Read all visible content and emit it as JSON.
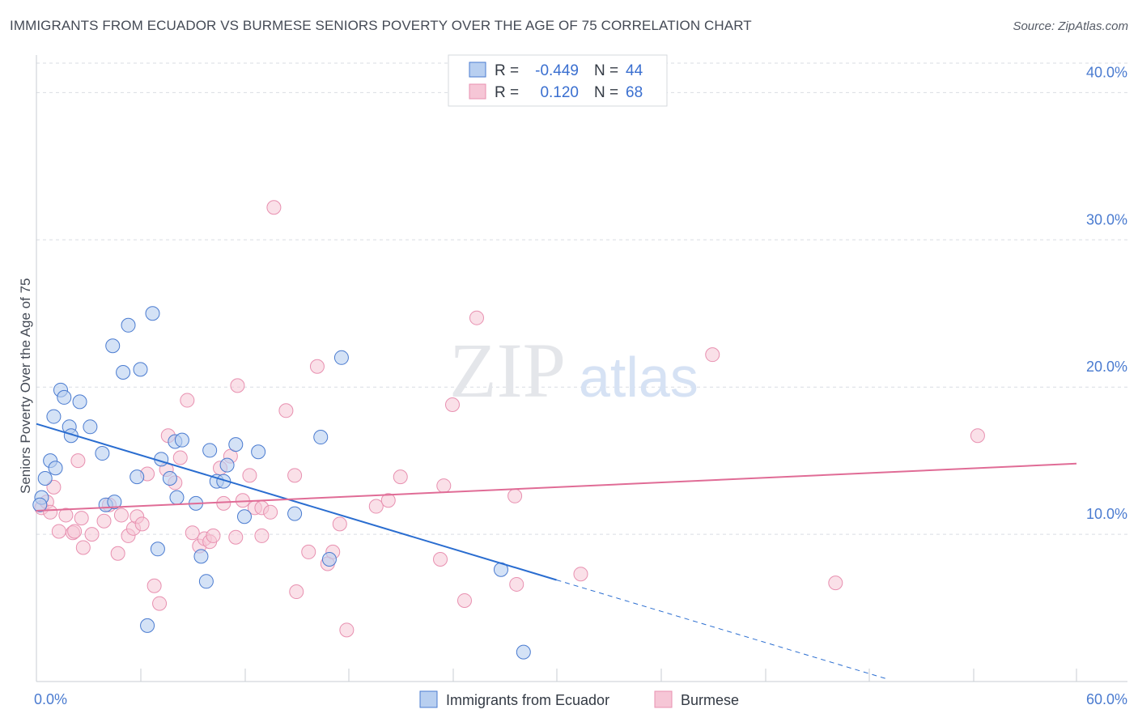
{
  "title": "IMMIGRANTS FROM ECUADOR VS BURMESE SENIORS POVERTY OVER THE AGE OF 75 CORRELATION CHART",
  "source": "Source: ZipAtlas.com",
  "watermark": {
    "zip": "ZIP",
    "atlas": "atlas"
  },
  "colors": {
    "blue": "#4a7bd0",
    "blue_fill": "#b8cff0",
    "blue_line": "#2a6dd0",
    "pink_fill": "#f6c6d6",
    "pink_stroke": "#e890b0",
    "pink_line": "#e06c96",
    "grid": "#d9dde3"
  },
  "legend_box": {
    "rows": [
      {
        "r_label": "R =",
        "r_value": "-0.449",
        "n_label": "N =",
        "n_value": "44"
      },
      {
        "r_label": "R =",
        "r_value": "0.120",
        "n_label": "N =",
        "n_value": "68"
      }
    ]
  },
  "chart_data": {
    "type": "scatter",
    "title": "IMMIGRANTS FROM ECUADOR VS BURMESE SENIORS POVERTY OVER THE AGE OF 75 CORRELATION CHART",
    "xlabel": "",
    "ylabel": "Seniors Poverty Over the Age of 75",
    "xlim": [
      0,
      60
    ],
    "ylim": [
      0,
      42
    ],
    "x_tick_labels": [
      "0.0%",
      "60.0%"
    ],
    "y_ticks": [
      10,
      20,
      30,
      40
    ],
    "y_tick_labels": [
      "10.0%",
      "20.0%",
      "30.0%",
      "40.0%"
    ],
    "grid": true,
    "legend": "top-center",
    "series": [
      {
        "name": "Immigrants from Ecuador",
        "color": "#4a7bd0",
        "R": -0.449,
        "N": 44,
        "trend": {
          "x0": 0,
          "y0": 17.5,
          "x1": 30,
          "y1": 6.9,
          "dash_x1": 49,
          "dash_y1": 0.2
        },
        "points": [
          [
            0.3,
            12.5
          ],
          [
            0.5,
            13.8
          ],
          [
            0.8,
            15.0
          ],
          [
            1.0,
            18.0
          ],
          [
            1.1,
            14.5
          ],
          [
            1.4,
            19.8
          ],
          [
            1.6,
            19.3
          ],
          [
            1.9,
            17.3
          ],
          [
            2.0,
            16.7
          ],
          [
            2.5,
            19.0
          ],
          [
            3.1,
            17.3
          ],
          [
            3.8,
            15.5
          ],
          [
            4.0,
            12.0
          ],
          [
            4.5,
            12.2
          ],
          [
            4.4,
            22.8
          ],
          [
            5.0,
            21.0
          ],
          [
            5.3,
            24.2
          ],
          [
            5.8,
            13.9
          ],
          [
            6.0,
            21.2
          ],
          [
            6.4,
            3.8
          ],
          [
            6.7,
            25.0
          ],
          [
            7.0,
            9.0
          ],
          [
            7.2,
            15.1
          ],
          [
            7.7,
            13.8
          ],
          [
            8.0,
            16.3
          ],
          [
            8.1,
            12.5
          ],
          [
            8.4,
            16.4
          ],
          [
            9.2,
            12.1
          ],
          [
            9.5,
            8.5
          ],
          [
            9.8,
            6.8
          ],
          [
            10.0,
            15.7
          ],
          [
            10.4,
            13.6
          ],
          [
            10.8,
            13.6
          ],
          [
            11.0,
            14.7
          ],
          [
            12.0,
            11.2
          ],
          [
            11.5,
            16.1
          ],
          [
            12.8,
            15.6
          ],
          [
            14.9,
            11.4
          ],
          [
            16.4,
            16.6
          ],
          [
            16.9,
            8.3
          ],
          [
            17.6,
            22.0
          ],
          [
            26.8,
            7.6
          ],
          [
            28.1,
            2.0
          ],
          [
            0.2,
            12.0
          ]
        ]
      },
      {
        "name": "Burmese",
        "color": "#f6c6d6",
        "R": 0.12,
        "N": 68,
        "trend": {
          "x0": 0,
          "y0": 11.6,
          "x1": 60,
          "y1": 14.8
        },
        "points": [
          [
            0.3,
            11.8
          ],
          [
            0.6,
            12.2
          ],
          [
            0.8,
            11.5
          ],
          [
            1.0,
            13.2
          ],
          [
            1.3,
            10.2
          ],
          [
            1.7,
            11.3
          ],
          [
            2.1,
            10.1
          ],
          [
            2.2,
            10.2
          ],
          [
            2.4,
            15.0
          ],
          [
            2.6,
            11.1
          ],
          [
            2.7,
            9.1
          ],
          [
            3.2,
            10.0
          ],
          [
            3.9,
            10.9
          ],
          [
            4.2,
            12.0
          ],
          [
            4.7,
            8.7
          ],
          [
            4.9,
            11.3
          ],
          [
            5.3,
            9.9
          ],
          [
            5.6,
            10.4
          ],
          [
            5.8,
            11.2
          ],
          [
            6.1,
            10.7
          ],
          [
            6.4,
            14.1
          ],
          [
            6.8,
            6.5
          ],
          [
            7.1,
            5.3
          ],
          [
            7.5,
            14.4
          ],
          [
            7.6,
            16.7
          ],
          [
            8.0,
            13.5
          ],
          [
            8.3,
            15.2
          ],
          [
            8.7,
            19.1
          ],
          [
            9.0,
            10.1
          ],
          [
            9.4,
            9.2
          ],
          [
            9.7,
            9.7
          ],
          [
            10.0,
            9.5
          ],
          [
            10.2,
            9.9
          ],
          [
            10.6,
            14.5
          ],
          [
            10.8,
            12.1
          ],
          [
            11.2,
            15.3
          ],
          [
            11.5,
            9.8
          ],
          [
            11.6,
            20.1
          ],
          [
            11.9,
            12.3
          ],
          [
            12.3,
            14.0
          ],
          [
            12.6,
            11.8
          ],
          [
            13.0,
            9.9
          ],
          [
            13.0,
            11.8
          ],
          [
            13.5,
            11.5
          ],
          [
            13.7,
            32.2
          ],
          [
            14.4,
            18.4
          ],
          [
            14.9,
            14.0
          ],
          [
            15.0,
            6.1
          ],
          [
            15.7,
            8.8
          ],
          [
            16.2,
            21.4
          ],
          [
            16.8,
            8.0
          ],
          [
            17.1,
            8.8
          ],
          [
            17.5,
            10.7
          ],
          [
            17.9,
            3.5
          ],
          [
            19.6,
            11.9
          ],
          [
            20.3,
            12.3
          ],
          [
            21.0,
            13.9
          ],
          [
            23.3,
            8.3
          ],
          [
            23.5,
            13.3
          ],
          [
            24.0,
            18.8
          ],
          [
            24.7,
            5.5
          ],
          [
            25.4,
            24.7
          ],
          [
            27.6,
            12.6
          ],
          [
            27.7,
            6.6
          ],
          [
            31.4,
            7.3
          ],
          [
            39.0,
            22.2
          ],
          [
            46.1,
            6.7
          ],
          [
            54.3,
            16.7
          ]
        ]
      }
    ]
  }
}
